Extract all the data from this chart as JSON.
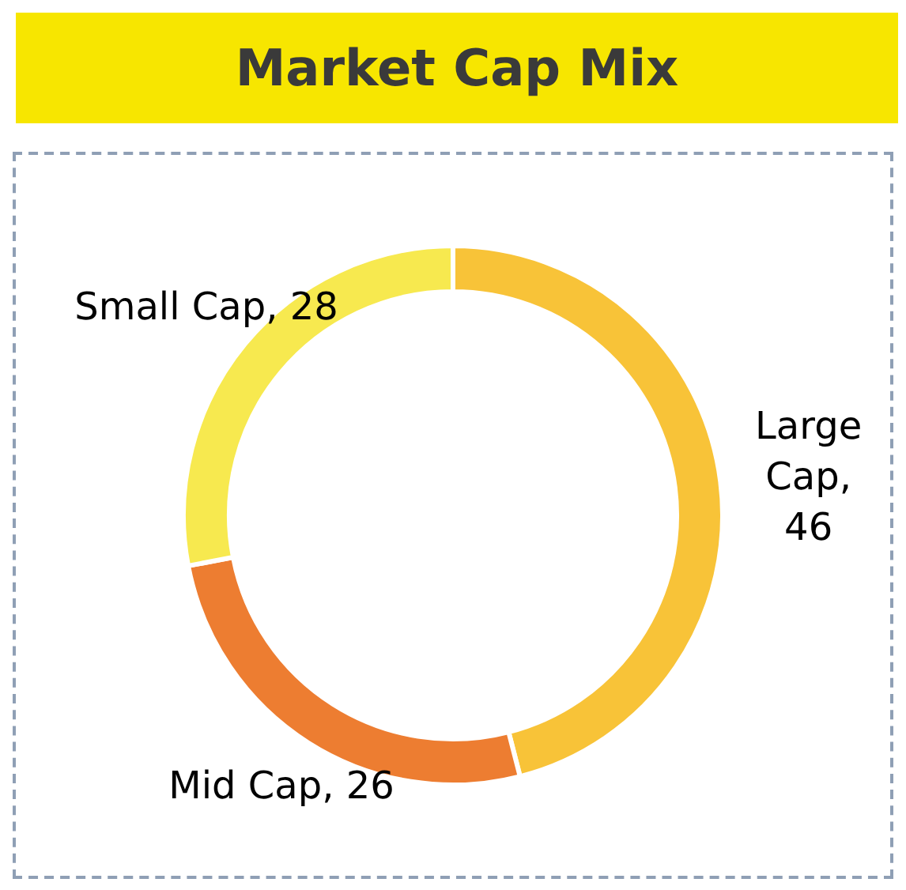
{
  "chart_data": {
    "type": "donut",
    "title": "Market Cap Mix",
    "categories": [
      "Large Cap",
      "Mid Cap",
      "Small Cap"
    ],
    "values": [
      46,
      26,
      28
    ],
    "value_labels": [
      ", 46",
      ", 26",
      ", 28"
    ],
    "colors": [
      "#f8c338",
      "#ed7d31",
      "#f7e94f"
    ],
    "legend": false
  }
}
